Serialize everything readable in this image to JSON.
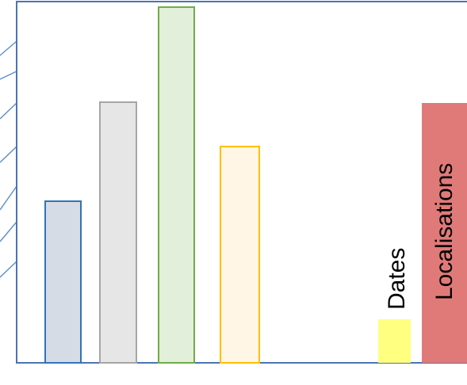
{
  "labels": {
    "dates": "Dates",
    "localisations": "Localisations"
  },
  "bars": [
    {
      "id": "bar-1",
      "fill": "#d6dce5",
      "stroke": "#2e75b6"
    },
    {
      "id": "bar-2",
      "fill": "#e7e6e6",
      "stroke": "#a5a5a5"
    },
    {
      "id": "bar-3",
      "fill": "#e2efda",
      "stroke": "#70ad47"
    },
    {
      "id": "bar-4",
      "fill": "#fff6e5",
      "stroke": "#ffc000"
    },
    {
      "id": "bar-dates",
      "fill": "#ffff80",
      "stroke": "none"
    },
    {
      "id": "bar-localisations",
      "fill": "#e07a78",
      "stroke": "none"
    }
  ],
  "colors": {
    "frame": "#4a74b4",
    "connector": "#5b8dc9"
  }
}
